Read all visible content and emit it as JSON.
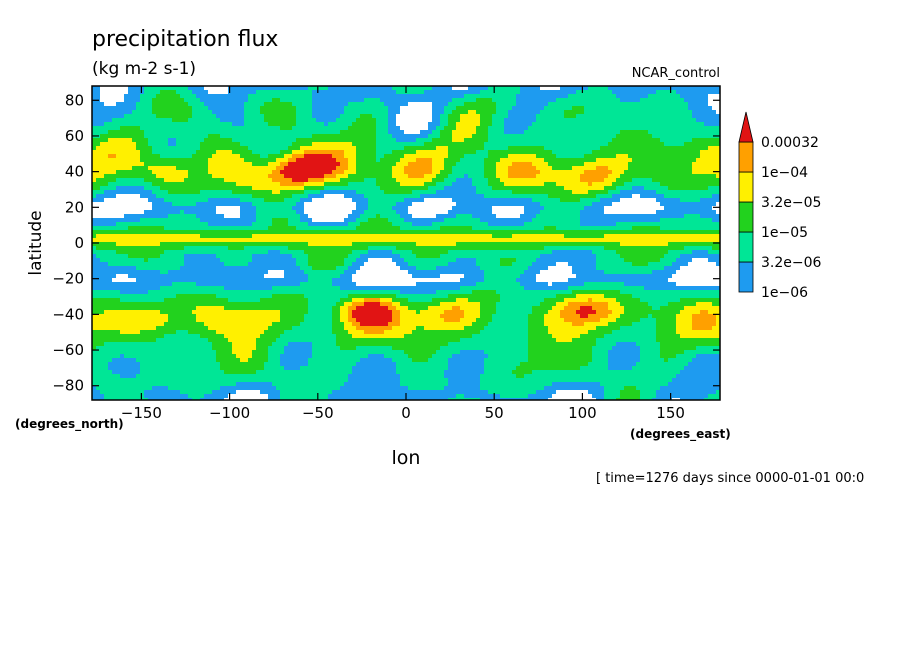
{
  "chart_data": {
    "type": "heatmap",
    "title": "precipitation flux",
    "units": "(kg m-2 s-1)",
    "run_label": "NCAR_control",
    "xlabel": "lon",
    "ylabel": "latitude",
    "x_units": "(degrees_east)",
    "y_units": "(degrees_north)",
    "xlim": [
      -178,
      178
    ],
    "ylim": [
      -88,
      88
    ],
    "x_ticks": [
      -150,
      -100,
      -50,
      0,
      50,
      100,
      150
    ],
    "y_ticks": [
      -80,
      -60,
      -40,
      -20,
      0,
      20,
      40,
      60,
      80
    ],
    "time_text": "[ time=1276 days since 0000-01-01 00:0",
    "legend": {
      "levels": [
        "1e-06",
        "3.2e-06",
        "1e-05",
        "3.2e-05",
        "1e-04",
        "0.00032"
      ],
      "colors": [
        "#ffffff",
        "#1e9bf0",
        "#00e696",
        "#22d21e",
        "#fff000",
        "#ffa000",
        "#e11414"
      ],
      "placement": "right"
    },
    "features": [
      {
        "kind": "itcz",
        "lon_range": [
          -178,
          178
        ],
        "lat_center": 2,
        "level": 4
      },
      {
        "kind": "storm",
        "lon": -135,
        "lat": 40,
        "level": 4
      },
      {
        "kind": "storm",
        "lon": -65,
        "lat": 38,
        "level": 5
      },
      {
        "kind": "storm",
        "lon": -58,
        "lat": 44,
        "level": 5
      },
      {
        "kind": "storm",
        "lon": -28,
        "lat": 38,
        "level": 3
      },
      {
        "kind": "storm",
        "lon": 10,
        "lat": 38,
        "level": 3
      },
      {
        "kind": "storm",
        "lon": 70,
        "lat": 40,
        "level": 4
      },
      {
        "kind": "storm",
        "lon": 110,
        "lat": 38,
        "level": 4
      },
      {
        "kind": "storm",
        "lon": 150,
        "lat": 36,
        "level": 3
      },
      {
        "kind": "storm",
        "lon": -145,
        "lat": -42,
        "level": 4
      },
      {
        "kind": "storm",
        "lon": -95,
        "lat": -42,
        "level": 4
      },
      {
        "kind": "storm",
        "lon": -22,
        "lat": -38,
        "level": 5
      },
      {
        "kind": "storm",
        "lon": 20,
        "lat": -38,
        "level": 4
      },
      {
        "kind": "storm",
        "lon": 102,
        "lat": -38,
        "level": 5
      },
      {
        "kind": "storm",
        "lon": 140,
        "lat": -35,
        "level": 3
      }
    ]
  }
}
